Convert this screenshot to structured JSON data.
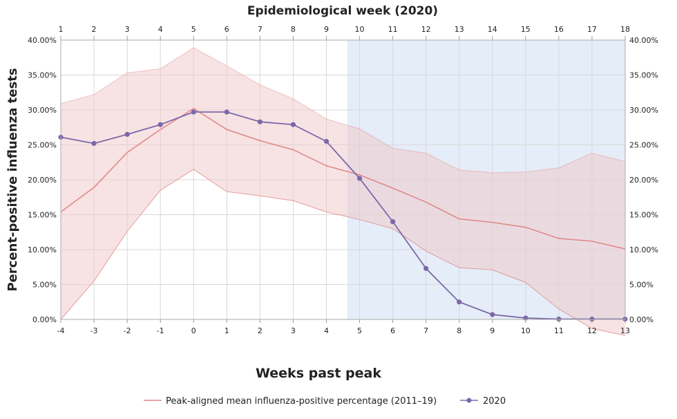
{
  "chart_data": {
    "type": "line",
    "top_axis_title": "Epidemiological week (2020)",
    "xlabel": "Weeks past peak",
    "ylabel": "Percent-positive influenza tests",
    "x": [
      -4,
      -3,
      -2,
      -1,
      0,
      1,
      2,
      3,
      4,
      5,
      6,
      7,
      8,
      9,
      10,
      11,
      12,
      13
    ],
    "top_ticks": [
      "1",
      "2",
      "3",
      "4",
      "5",
      "6",
      "7",
      "8",
      "9",
      "10",
      "11",
      "12",
      "13",
      "14",
      "15",
      "16",
      "17",
      "18"
    ],
    "xlim": [
      -4,
      13
    ],
    "ylim": [
      0,
      40
    ],
    "y_ticks": [
      "0.00%",
      "5.00%",
      "10.00%",
      "15.00%",
      "20.00%",
      "25.00%",
      "30.00%",
      "35.00%",
      "40.00%"
    ],
    "grid": true,
    "legend_placement": "bottom",
    "series": [
      {
        "name": "Peak-aligned mean influenza-positive percentage (2011–19)",
        "color": "#e08888",
        "values": [
          15.4,
          18.9,
          23.9,
          27.2,
          30.2,
          27.2,
          25.6,
          24.3,
          22.0,
          20.7,
          18.8,
          16.8,
          14.4,
          13.9,
          13.2,
          11.6,
          11.2,
          10.1
        ],
        "band_upper": [
          30.9,
          32.2,
          35.3,
          35.9,
          38.9,
          36.3,
          33.6,
          31.6,
          28.7,
          27.3,
          24.5,
          23.8,
          21.4,
          21.0,
          21.1,
          21.7,
          23.8,
          22.6
        ],
        "band_lower": [
          0.0,
          5.5,
          12.6,
          18.5,
          21.5,
          18.3,
          17.7,
          17.0,
          15.4,
          14.3,
          13.0,
          9.8,
          7.4,
          7.1,
          5.3,
          1.5,
          -1.3,
          -2.3
        ],
        "band_color": "#f0c8c8"
      },
      {
        "name": "2020",
        "color": "#7b68a8",
        "markers": true,
        "values": [
          26.1,
          25.2,
          26.5,
          27.9,
          29.7,
          29.7,
          28.3,
          27.9,
          25.5,
          20.2,
          14.0,
          7.3,
          2.5,
          0.7,
          0.2,
          0.05,
          0.05,
          0.05
        ]
      }
    ],
    "shaded_region": {
      "x_start": 4.63,
      "x_end": 13,
      "color": "#dce7f5"
    }
  }
}
